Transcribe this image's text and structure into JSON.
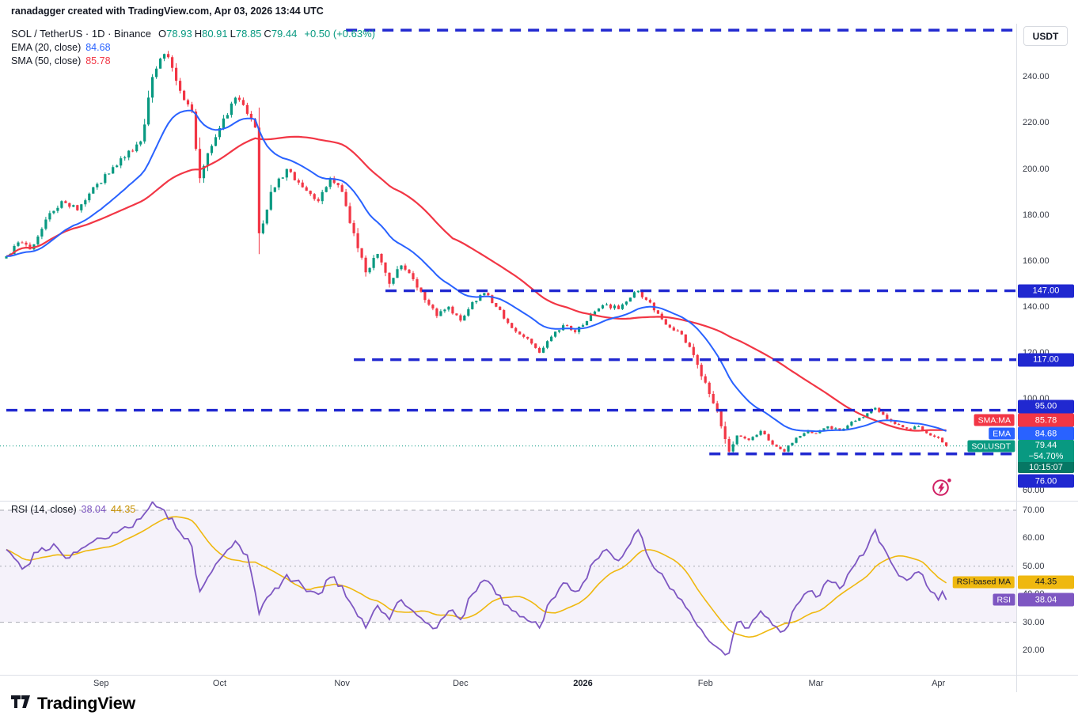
{
  "attribution": "ranadagger created with TradingView.com, Apr 03, 2026 13:44 UTC",
  "toolbar": {
    "currency_label": "USDT"
  },
  "legend": {
    "symbol": "SOL / TetherUS · 1D · Binance",
    "ohlc": [
      {
        "k": "O",
        "v": "78.93"
      },
      {
        "k": "H",
        "v": "80.91"
      },
      {
        "k": "L",
        "v": "78.85"
      },
      {
        "k": "C",
        "v": "79.44"
      }
    ],
    "change": "+0.50 (+0.63%)",
    "ema_label": "EMA (20, close)",
    "ema_value": "84.68",
    "sma_label": "SMA (50, close)",
    "sma_value": "85.78"
  },
  "rsi_legend": {
    "label": "RSI (14, close)",
    "rsi_value": "38.04",
    "ma_value": "44.35"
  },
  "axis_badges": {
    "sma_tag": "SMA:MA",
    "sma_value": "85.78",
    "ema_tag": "EMA",
    "ema_value": "84.68",
    "symbol_tag": "SOLUSDT",
    "symbol_price": "79.44",
    "symbol_change": "−54.70%",
    "symbol_countdown": "10:15:07",
    "rsi_ma_tag": "RSI-based MA",
    "rsi_ma_value": "44.35",
    "rsi_tag": "RSI",
    "rsi_value": "38.04"
  },
  "footer": {
    "logo_text": "TradingView"
  },
  "icons": {
    "flash": "lightning-bolt-circle-icon",
    "logo": "tradingview-mark-icon"
  },
  "colors": {
    "up": "#089981",
    "down": "#f23645",
    "ema": "#2962ff",
    "sma": "#f23645",
    "level_blue": "#2028d0",
    "rsi": "#7e57c2",
    "rsi_ma": "#efb80f",
    "flash": "#d01f63",
    "axis_text": "#363a45"
  },
  "chart_data": {
    "type": "candlestick",
    "title": "SOL / TetherUS · 1D · Binance",
    "symbol": "SOLUSDT",
    "exchange": "Binance",
    "interval": "1D",
    "snapshot_time": "Apr 03, 2026 13:44 UTC",
    "x_start": "2025-08-08",
    "x_end": "2026-04-03",
    "day_count": 239,
    "visible_price_range": [
      55.6,
      263.2
    ],
    "price_axis_ticks": [
      240,
      220,
      200,
      180,
      160,
      140,
      120,
      100,
      80,
      60
    ],
    "horizontal_levels": [
      {
        "price": 260.4,
        "starts_day": 86,
        "labeled": false
      },
      {
        "price": 147.0,
        "starts_day": 96,
        "labeled": true
      },
      {
        "price": 117.0,
        "starts_day": 88,
        "labeled": true
      },
      {
        "price": 95.0,
        "starts_day": 0,
        "labeled": true
      },
      {
        "price": 76.0,
        "starts_day": 178,
        "labeled": true
      }
    ],
    "last_candle": {
      "open": 78.93,
      "high": 80.91,
      "low": 78.85,
      "close": 79.44,
      "change": "+0.50",
      "change_pct": "+0.63%"
    },
    "close_anchors": [
      [
        0,
        162
      ],
      [
        3,
        168
      ],
      [
        6,
        165
      ],
      [
        10,
        178
      ],
      [
        14,
        186
      ],
      [
        18,
        182
      ],
      [
        22,
        192
      ],
      [
        26,
        198
      ],
      [
        30,
        205
      ],
      [
        34,
        212
      ],
      [
        37,
        240
      ],
      [
        40,
        250
      ],
      [
        42,
        244
      ],
      [
        44,
        234
      ],
      [
        47,
        225
      ],
      [
        49,
        196
      ],
      [
        52,
        210
      ],
      [
        55,
        222
      ],
      [
        58,
        231
      ],
      [
        61,
        224
      ],
      [
        63,
        218
      ],
      [
        64,
        172
      ],
      [
        67,
        190
      ],
      [
        71,
        200
      ],
      [
        75,
        192
      ],
      [
        79,
        186
      ],
      [
        82,
        196
      ],
      [
        85,
        190
      ],
      [
        88,
        172
      ],
      [
        91,
        155
      ],
      [
        94,
        163
      ],
      [
        97,
        150
      ],
      [
        100,
        158
      ],
      [
        103,
        152
      ],
      [
        106,
        143
      ],
      [
        109,
        136
      ],
      [
        112,
        140
      ],
      [
        115,
        134
      ],
      [
        118,
        142
      ],
      [
        121,
        146
      ],
      [
        124,
        140
      ],
      [
        127,
        133
      ],
      [
        130,
        128
      ],
      [
        133,
        124
      ],
      [
        135,
        120
      ],
      [
        138,
        127
      ],
      [
        141,
        132
      ],
      [
        144,
        129
      ],
      [
        146,
        132
      ],
      [
        149,
        138
      ],
      [
        152,
        141
      ],
      [
        155,
        139
      ],
      [
        158,
        144
      ],
      [
        160,
        147
      ],
      [
        162,
        143
      ],
      [
        165,
        137
      ],
      [
        168,
        131
      ],
      [
        171,
        128
      ],
      [
        174,
        119
      ],
      [
        177,
        107
      ],
      [
        179,
        98
      ],
      [
        181,
        88
      ],
      [
        183,
        77
      ],
      [
        185,
        84
      ],
      [
        188,
        82
      ],
      [
        191,
        86
      ],
      [
        194,
        80
      ],
      [
        197,
        77
      ],
      [
        200,
        83
      ],
      [
        203,
        86
      ],
      [
        205,
        85
      ],
      [
        208,
        88
      ],
      [
        211,
        86
      ],
      [
        214,
        90
      ],
      [
        217,
        92
      ],
      [
        220,
        96
      ],
      [
        222,
        93
      ],
      [
        225,
        89
      ],
      [
        228,
        87
      ],
      [
        231,
        88
      ],
      [
        234,
        84
      ],
      [
        236,
        83
      ],
      [
        237,
        81
      ],
      [
        238,
        79.44
      ]
    ],
    "indicators": {
      "ema20": {
        "label": "EMA (20, close)",
        "period": 20,
        "last": 84.68
      },
      "sma50": {
        "label": "SMA (50, close)",
        "period": 50,
        "last": 85.78
      },
      "rsi14": {
        "label": "RSI (14, close)",
        "period": 14,
        "last": 38.04,
        "ma_last": 44.35,
        "axis_ticks": [
          70,
          60,
          50,
          40,
          30,
          20
        ],
        "band": [
          30,
          70
        ],
        "anchors": [
          [
            0,
            56
          ],
          [
            4,
            49
          ],
          [
            8,
            55
          ],
          [
            12,
            58
          ],
          [
            16,
            53
          ],
          [
            20,
            57
          ],
          [
            24,
            60
          ],
          [
            28,
            62
          ],
          [
            32,
            64
          ],
          [
            37,
            73
          ],
          [
            40,
            70
          ],
          [
            44,
            62
          ],
          [
            47,
            57
          ],
          [
            49,
            41
          ],
          [
            52,
            48
          ],
          [
            55,
            54
          ],
          [
            58,
            59
          ],
          [
            61,
            54
          ],
          [
            64,
            33
          ],
          [
            67,
            40
          ],
          [
            71,
            47
          ],
          [
            75,
            43
          ],
          [
            79,
            40
          ],
          [
            82,
            46
          ],
          [
            85,
            43
          ],
          [
            88,
            35
          ],
          [
            91,
            28
          ],
          [
            94,
            36
          ],
          [
            97,
            31
          ],
          [
            100,
            38
          ],
          [
            103,
            34
          ],
          [
            106,
            30
          ],
          [
            109,
            28
          ],
          [
            112,
            34
          ],
          [
            115,
            31
          ],
          [
            118,
            40
          ],
          [
            121,
            45
          ],
          [
            124,
            40
          ],
          [
            127,
            36
          ],
          [
            130,
            32
          ],
          [
            133,
            30
          ],
          [
            135,
            28
          ],
          [
            138,
            38
          ],
          [
            141,
            44
          ],
          [
            144,
            41
          ],
          [
            146,
            44
          ],
          [
            149,
            52
          ],
          [
            152,
            56
          ],
          [
            155,
            52
          ],
          [
            158,
            58
          ],
          [
            160,
            63
          ],
          [
            162,
            55
          ],
          [
            165,
            48
          ],
          [
            168,
            42
          ],
          [
            171,
            38
          ],
          [
            174,
            31
          ],
          [
            177,
            25
          ],
          [
            179,
            22
          ],
          [
            181,
            20
          ],
          [
            183,
            19
          ],
          [
            185,
            30
          ],
          [
            188,
            28
          ],
          [
            191,
            34
          ],
          [
            194,
            29
          ],
          [
            197,
            27
          ],
          [
            200,
            36
          ],
          [
            203,
            41
          ],
          [
            205,
            39
          ],
          [
            208,
            45
          ],
          [
            211,
            42
          ],
          [
            214,
            49
          ],
          [
            217,
            54
          ],
          [
            220,
            63
          ],
          [
            222,
            57
          ],
          [
            225,
            49
          ],
          [
            228,
            45
          ],
          [
            231,
            48
          ],
          [
            234,
            41
          ],
          [
            236,
            38
          ],
          [
            237,
            41
          ],
          [
            238,
            38.04
          ]
        ]
      }
    },
    "time_axis_labels": [
      {
        "text": "Sep",
        "day": 24
      },
      {
        "text": "Oct",
        "day": 54
      },
      {
        "text": "Nov",
        "day": 85
      },
      {
        "text": "Dec",
        "day": 115
      },
      {
        "text": "2026",
        "day": 146,
        "bold": true
      },
      {
        "text": "Feb",
        "day": 177
      },
      {
        "text": "Mar",
        "day": 205
      },
      {
        "text": "Apr",
        "day": 236
      }
    ]
  }
}
